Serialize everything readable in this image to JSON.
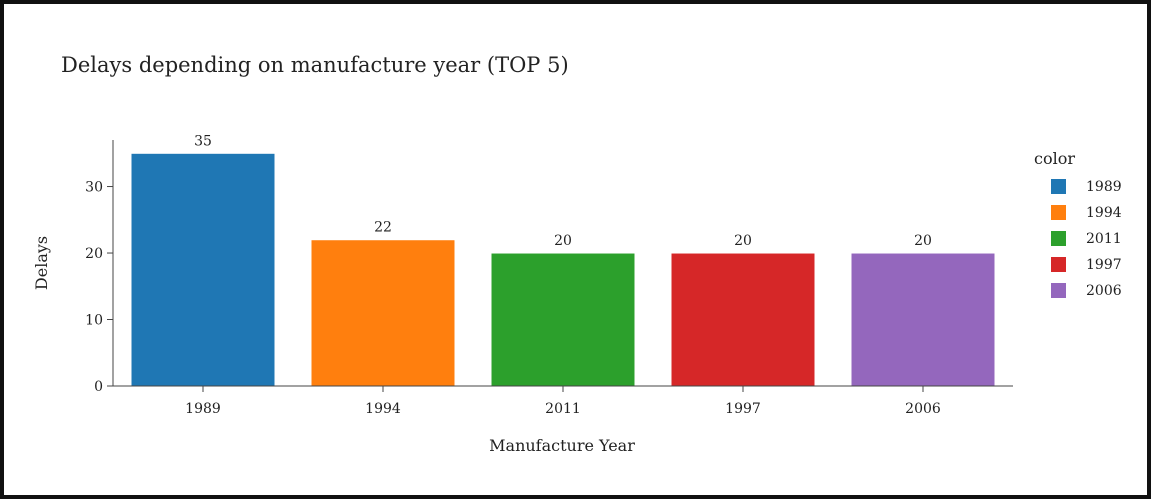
{
  "chart_data": {
    "type": "bar",
    "title": "Delays depending on manufacture year (TOP 5)",
    "xlabel": "Manufacture Year",
    "ylabel": "Delays",
    "categories": [
      "1989",
      "1994",
      "2011",
      "1997",
      "2006"
    ],
    "values": [
      35,
      22,
      20,
      20,
      20
    ],
    "colors": [
      "#1f77b4",
      "#ff7f0e",
      "#2ca02c",
      "#d62728",
      "#9467bd"
    ],
    "ylim": [
      0,
      37
    ],
    "yticks": [
      0,
      10,
      20,
      30
    ],
    "legend": {
      "title": "color",
      "placement": "right",
      "entries": [
        "1989",
        "1994",
        "2011",
        "1997",
        "2006"
      ]
    },
    "grid": false
  }
}
